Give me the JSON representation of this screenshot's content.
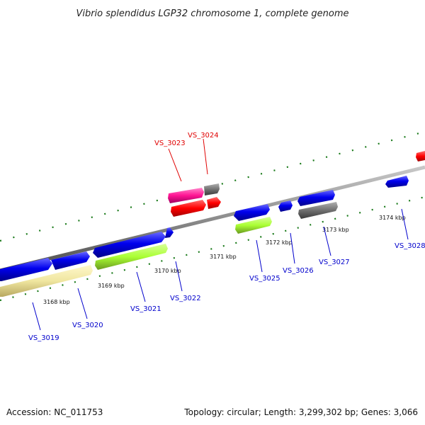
{
  "title": "Vibrio splendidus LGP32 chromosome 1, complete genome",
  "accession_text": "Accession: NC_011753",
  "summary_text": "Topology: circular; Length: 3,299,302 bp; Genes: 3,066",
  "ticks": [
    "3168 kbp",
    "3169 kbp",
    "3170 kbp",
    "3171 kbp",
    "3172 kbp",
    "3173 kbp",
    "3174 kbp"
  ],
  "genes": [
    {
      "label": "VS_3019",
      "color": "#0000cc"
    },
    {
      "label": "VS_3020",
      "color": "#0000cc"
    },
    {
      "label": "VS_3021",
      "color": "#0000cc"
    },
    {
      "label": "VS_3022",
      "color": "#0000cc"
    },
    {
      "label": "VS_3023",
      "color": "#e00000"
    },
    {
      "label": "VS_3024",
      "color": "#e00000"
    },
    {
      "label": "VS_3025",
      "color": "#0000cc"
    },
    {
      "label": "VS_3026",
      "color": "#0000cc"
    },
    {
      "label": "VS_3027",
      "color": "#0000cc"
    },
    {
      "label": "VS_3028",
      "color": "#0000cc"
    }
  ],
  "colors": {
    "forward_gene": "#0000ee",
    "reverse_cds": "#f0e6a0",
    "rna": "#aaff33",
    "pseudo": "#707070",
    "red_gene": "#ff0000",
    "pink_gene": "#ff1493",
    "backbone": "#8c8c8c",
    "tick": "#1a7a1a"
  }
}
